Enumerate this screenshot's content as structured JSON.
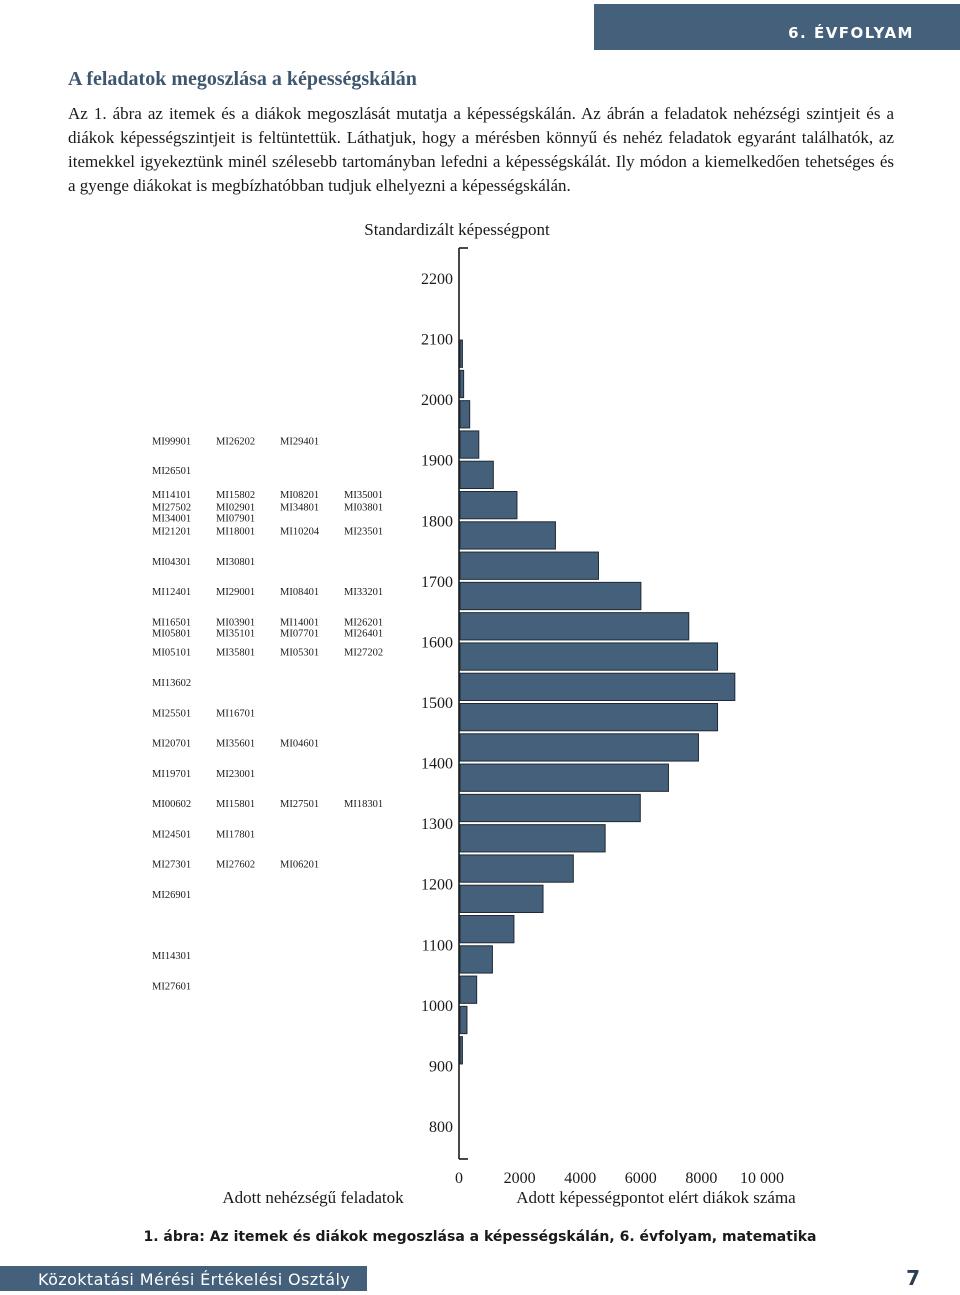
{
  "header": {
    "grade": "6. ÉVFOLYAM"
  },
  "section": {
    "title": "A feladatok megoszlása a képességskálán",
    "paragraph": "Az 1. ábra az itemek és a diákok megoszlását mutatja a képességskálán. Az ábrán a feladatok nehézségi szintjeit és a diákok képességszintjeit is feltüntettük. Láthatjuk, hogy a mérésben könnyű és nehéz feladatok egyaránt találhatók, az itemekkel igyekeztünk minél szélesebb tartományban lefedni a képességskálát. Ily módon a kiemelkedően tehetséges és a gyenge diákokat is megbízhatóbban tudjuk elhelyezni a képességskálán."
  },
  "colors": {
    "accent": "#45607a",
    "bar_fill": "#45607a",
    "bar_stroke": "#1f2a36"
  },
  "chart_data": {
    "type": "bar",
    "orientation": "horizontal",
    "title": "Standardizált képességpont",
    "ylabel": "Standardizált képességpont",
    "ylim": [
      800,
      2200
    ],
    "yticks": [
      2200,
      2100,
      2000,
      1900,
      1800,
      1700,
      1600,
      1500,
      1400,
      1300,
      1200,
      1100,
      1000,
      900,
      800
    ],
    "xlabel": "Adott képességpontot elért diákok száma",
    "xlim": [
      0,
      10000
    ],
    "xticks": [
      "0",
      "2000",
      "4000",
      "6000",
      "8000",
      "10 000"
    ],
    "left_label": "Adott nehézségű feladatok",
    "series": [
      {
        "name": "Adott képességpontot elért diákok száma",
        "bin_width": 50,
        "points": [
          {
            "y": 2075,
            "v": 80
          },
          {
            "y": 2025,
            "v": 120
          },
          {
            "y": 1975,
            "v": 320
          },
          {
            "y": 1925,
            "v": 620
          },
          {
            "y": 1875,
            "v": 1100
          },
          {
            "y": 1825,
            "v": 1880
          },
          {
            "y": 1775,
            "v": 3150
          },
          {
            "y": 1725,
            "v": 4570
          },
          {
            "y": 1675,
            "v": 5970
          },
          {
            "y": 1625,
            "v": 7550
          },
          {
            "y": 1575,
            "v": 8500
          },
          {
            "y": 1525,
            "v": 9070
          },
          {
            "y": 1475,
            "v": 8500
          },
          {
            "y": 1425,
            "v": 7870
          },
          {
            "y": 1375,
            "v": 6880
          },
          {
            "y": 1325,
            "v": 5950
          },
          {
            "y": 1275,
            "v": 4790
          },
          {
            "y": 1225,
            "v": 3740
          },
          {
            "y": 1175,
            "v": 2740
          },
          {
            "y": 1125,
            "v": 1780
          },
          {
            "y": 1075,
            "v": 1070
          },
          {
            "y": 1025,
            "v": 550
          },
          {
            "y": 975,
            "v": 230
          },
          {
            "y": 925,
            "v": 80
          }
        ]
      }
    ],
    "items": [
      {
        "y": 1932,
        "labels": [
          "MI99901",
          "MI26202",
          "MI29401"
        ]
      },
      {
        "y": 1883,
        "labels": [
          "MI26501"
        ]
      },
      {
        "y": 1843,
        "labels": [
          "MI14101",
          "MI15802",
          "MI08201",
          "MI35001"
        ]
      },
      {
        "y": 1823,
        "labels": [
          "MI27502",
          "MI02901",
          "MI34801",
          "MI03801"
        ]
      },
      {
        "y": 1805,
        "labels": [
          "MI34001",
          "MI07901"
        ]
      },
      {
        "y": 1783,
        "labels": [
          "MI21201",
          "MI18001",
          "MI10204",
          "MI23501"
        ]
      },
      {
        "y": 1733,
        "labels": [
          "MI04301",
          "MI30801"
        ]
      },
      {
        "y": 1683,
        "labels": [
          "MI12401",
          "MI29001",
          "MI08401",
          "MI33201"
        ]
      },
      {
        "y": 1633,
        "labels": [
          "MI16501",
          "MI03901",
          "MI14001",
          "MI26201"
        ]
      },
      {
        "y": 1615,
        "labels": [
          "MI05801",
          "MI35101",
          "MI07701",
          "MI26401"
        ]
      },
      {
        "y": 1583,
        "labels": [
          "MI05101",
          "MI35801",
          "MI05301",
          "MI27202"
        ]
      },
      {
        "y": 1533,
        "labels": [
          "MI13602"
        ]
      },
      {
        "y": 1483,
        "labels": [
          "MI25501",
          "MI16701"
        ]
      },
      {
        "y": 1433,
        "labels": [
          "MI20701",
          "MI35601",
          "MI04601"
        ]
      },
      {
        "y": 1383,
        "labels": [
          "MI19701",
          "MI23001"
        ]
      },
      {
        "y": 1333,
        "labels": [
          "MI00602",
          "MI15801",
          "MI27501",
          "MI18301"
        ]
      },
      {
        "y": 1283,
        "labels": [
          "MI24501",
          "MI17801"
        ]
      },
      {
        "y": 1233,
        "labels": [
          "MI27301",
          "MI27602",
          "MI06201"
        ]
      },
      {
        "y": 1183,
        "labels": [
          "MI26901"
        ]
      },
      {
        "y": 1082,
        "labels": [
          "MI14301"
        ]
      },
      {
        "y": 1032,
        "labels": [
          "MI27601"
        ]
      }
    ]
  },
  "caption": "1. ábra: Az itemek és diákok megoszlása a képességskálán, 6. évfolyam, matematika",
  "footer": {
    "organization": "Közoktatási Mérési Értékelési Osztály",
    "page_number": "7"
  }
}
